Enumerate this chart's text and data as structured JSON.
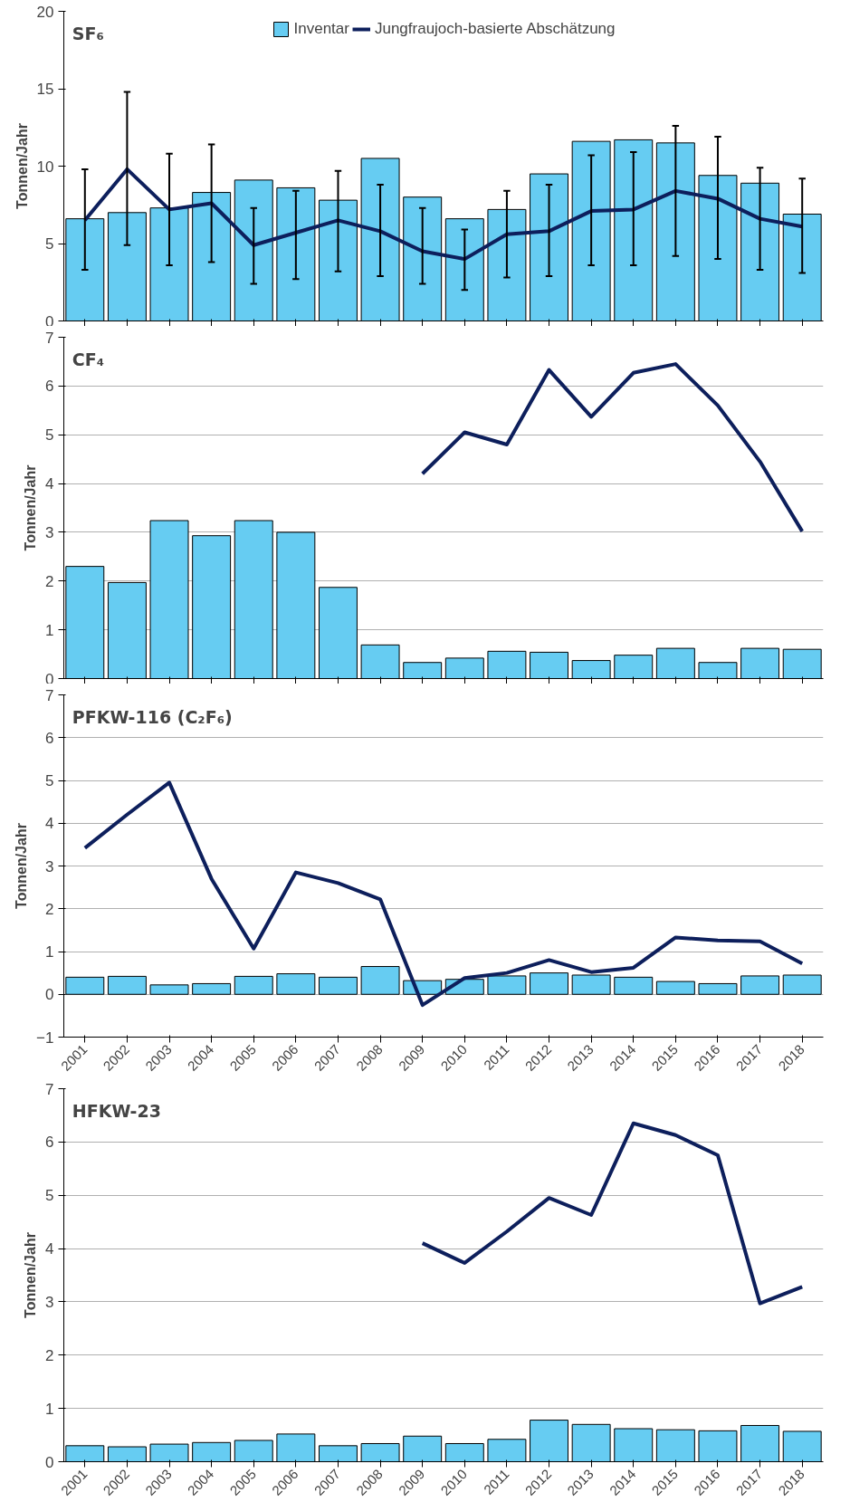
{
  "chart_data": [
    {
      "type": "bar",
      "title": "SF₆",
      "ylabel": "Tonnen/Jahr",
      "categories": [
        "2001",
        "2002",
        "2003",
        "2004",
        "2005",
        "2006",
        "2007",
        "2008",
        "2009",
        "2010",
        "2011",
        "2012",
        "2013",
        "2014",
        "2015",
        "2016",
        "2017",
        "2018"
      ],
      "ylim": [
        0,
        20
      ],
      "yticks": [
        0,
        5,
        10,
        15,
        20
      ],
      "grid": false,
      "legend": "top",
      "tick_labels": "y",
      "series": [
        {
          "name": "Inventar",
          "color": "#66ccf2",
          "values": [
            6.6,
            7.0,
            7.3,
            8.3,
            9.1,
            8.6,
            7.8,
            10.5,
            8.0,
            6.6,
            7.2,
            9.5,
            11.6,
            11.7,
            11.5,
            9.4,
            8.9,
            6.9
          ]
        },
        {
          "name": "Jungfraujoch-basierte Abschätzung",
          "type": "line",
          "color": "#0d1f5c",
          "values": [
            6.5,
            9.8,
            7.2,
            7.6,
            4.9,
            5.7,
            6.5,
            5.8,
            4.5,
            4.0,
            5.6,
            5.8,
            7.1,
            7.2,
            8.4,
            7.9,
            6.6,
            6.1
          ],
          "errors": [
            [
              3.3,
              9.8
            ],
            [
              4.9,
              14.8
            ],
            [
              3.6,
              10.8
            ],
            [
              3.8,
              11.4
            ],
            [
              2.4,
              7.3
            ],
            [
              2.7,
              8.4
            ],
            [
              3.2,
              9.7
            ],
            [
              2.9,
              8.8
            ],
            [
              2.4,
              7.3
            ],
            [
              2.0,
              5.9
            ],
            [
              2.8,
              8.4
            ],
            [
              2.9,
              8.8
            ],
            [
              3.6,
              10.7
            ],
            [
              3.6,
              10.9
            ],
            [
              4.2,
              12.6
            ],
            [
              4.0,
              11.9
            ],
            [
              3.3,
              9.9
            ],
            [
              3.1,
              9.2
            ]
          ]
        }
      ]
    },
    {
      "type": "bar",
      "title": "CF₄",
      "ylabel": "Tonnen/Jahr",
      "categories": [
        "2001",
        "2002",
        "2003",
        "2004",
        "2005",
        "2006",
        "2007",
        "2008",
        "2009",
        "2010",
        "2011",
        "2012",
        "2013",
        "2014",
        "2015",
        "2016",
        "2017",
        "2018"
      ],
      "ylim": [
        0,
        7
      ],
      "yticks": [
        0,
        1,
        2,
        3,
        4,
        5,
        6,
        7
      ],
      "grid": "y",
      "tick_labels": "y",
      "series": [
        {
          "color": "#66ccf2",
          "values": [
            2.3,
            1.97,
            3.24,
            2.93,
            3.24,
            3.0,
            1.87,
            0.69,
            0.33,
            0.42,
            0.56,
            0.54,
            0.37,
            0.48,
            0.62,
            0.33,
            0.62,
            0.6
          ]
        },
        {
          "type": "line",
          "color": "#0d1f5c",
          "values": [
            null,
            null,
            null,
            null,
            null,
            null,
            null,
            null,
            4.2,
            5.05,
            4.8,
            6.33,
            5.37,
            6.27,
            6.45,
            5.6,
            4.45,
            3.02
          ]
        }
      ]
    },
    {
      "type": "bar",
      "title": "PFKW-116 (C₂F₆)",
      "ylabel": "Tonnen/Jahr",
      "categories": [
        "2001",
        "2002",
        "2003",
        "2004",
        "2005",
        "2006",
        "2007",
        "2008",
        "2009",
        "2010",
        "2011",
        "2012",
        "2013",
        "2014",
        "2015",
        "2016",
        "2017",
        "2018"
      ],
      "ylim": [
        -1,
        7
      ],
      "yticks": [
        -1,
        0,
        1,
        2,
        3,
        4,
        5,
        6,
        7
      ],
      "grid": "y",
      "series": [
        {
          "color": "#66ccf2",
          "values": [
            0.4,
            0.42,
            0.22,
            0.25,
            0.42,
            0.48,
            0.4,
            0.65,
            0.32,
            0.35,
            0.43,
            0.5,
            0.45,
            0.4,
            0.3,
            0.25,
            0.43,
            0.45
          ]
        },
        {
          "type": "line",
          "color": "#0d1f5c",
          "values": [
            3.42,
            4.2,
            4.95,
            2.7,
            1.07,
            2.85,
            2.6,
            2.22,
            -0.25,
            0.38,
            0.5,
            0.8,
            0.52,
            0.62,
            1.33,
            1.26,
            1.24,
            0.72
          ]
        }
      ]
    },
    {
      "type": "bar",
      "title": "HFKW-23",
      "ylabel": "Tonnen/Jahr",
      "categories": [
        "2001",
        "2002",
        "2003",
        "2004",
        "2005",
        "2006",
        "2007",
        "2008",
        "2009",
        "2010",
        "2011",
        "2012",
        "2013",
        "2014",
        "2015",
        "2016",
        "2017",
        "2018"
      ],
      "ylim": [
        0,
        7
      ],
      "yticks": [
        0,
        1,
        2,
        3,
        4,
        5,
        6,
        7
      ],
      "grid": "y",
      "series": [
        {
          "color": "#66ccf2",
          "values": [
            0.3,
            0.28,
            0.33,
            0.36,
            0.4,
            0.52,
            0.3,
            0.34,
            0.48,
            0.34,
            0.42,
            0.78,
            0.7,
            0.62,
            0.6,
            0.58,
            0.68,
            0.57
          ]
        },
        {
          "type": "line",
          "color": "#0d1f5c",
          "values": [
            null,
            null,
            null,
            null,
            null,
            null,
            null,
            null,
            4.1,
            3.73,
            4.32,
            4.95,
            4.63,
            6.35,
            6.13,
            5.75,
            2.97,
            3.28
          ]
        }
      ]
    }
  ]
}
